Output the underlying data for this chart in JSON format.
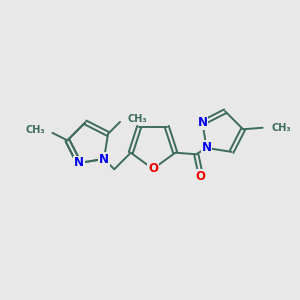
{
  "background_color": "#e8e8e8",
  "bond_color": "#3d6b5e",
  "N_color": "#0000ee",
  "O_color": "#ee0000",
  "font_size": 8.5,
  "lw": 1.4,
  "figsize": [
    3.0,
    3.0
  ],
  "dpi": 100,
  "xlim": [
    0,
    10
  ],
  "ylim": [
    0,
    10
  ]
}
